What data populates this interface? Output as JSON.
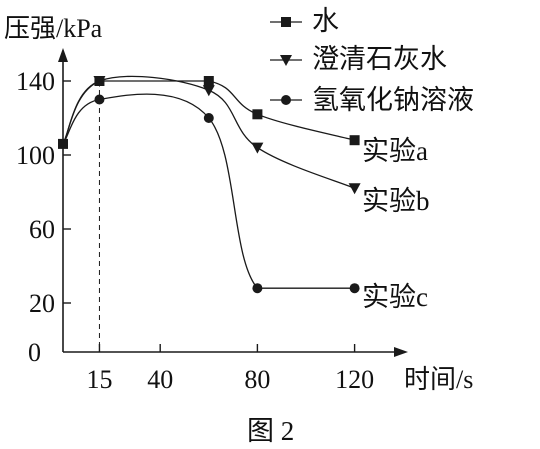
{
  "chart_data": {
    "type": "line",
    "ylabel": "压强/kPa",
    "xlabel": "时间/s",
    "caption": "图 2",
    "y_ticks": [
      "0",
      "20",
      "60",
      "100",
      "140"
    ],
    "x_ticks": [
      "15",
      "40",
      "80",
      "120"
    ],
    "xlim": [
      0,
      120
    ],
    "ylim": [
      0,
      155
    ],
    "legend_position": "top-right",
    "series": [
      {
        "name": "水",
        "marker": "square",
        "end_label": "实验a",
        "points": [
          [
            0,
            106
          ],
          [
            15,
            140
          ],
          [
            60,
            140
          ],
          [
            80,
            122
          ],
          [
            120,
            108
          ]
        ]
      },
      {
        "name": "澄清石灰水",
        "marker": "triangle-down",
        "end_label": "实验b",
        "points": [
          [
            0,
            106
          ],
          [
            15,
            140
          ],
          [
            60,
            135
          ],
          [
            80,
            104
          ],
          [
            120,
            82
          ]
        ]
      },
      {
        "name": "氢氧化钠溶液",
        "marker": "circle",
        "end_label": "实验c",
        "points": [
          [
            0,
            106
          ],
          [
            15,
            130
          ],
          [
            60,
            120
          ],
          [
            80,
            28
          ],
          [
            120,
            28
          ]
        ]
      }
    ],
    "annotations": [
      "t=15 s 处虚线"
    ]
  }
}
